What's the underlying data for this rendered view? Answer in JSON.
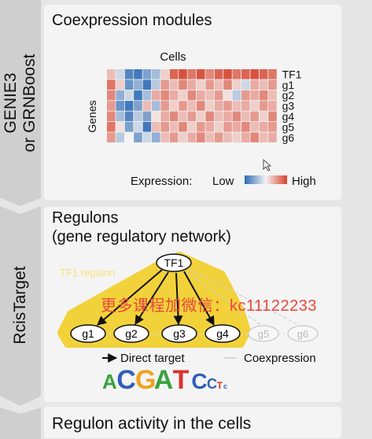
{
  "sections": [
    {
      "step_label": "GENIE3\nor GRNBoost",
      "title": "Coexpression modules"
    },
    {
      "step_label": "RcisTarget",
      "title_line1": "Regulons",
      "title_line2": "(gene regulatory network)"
    },
    {
      "step_label": "",
      "title": "Regulon activity in the cells"
    }
  ],
  "heatmap": {
    "x_label": "Cells",
    "y_label": "Genes",
    "rows": [
      "TF1",
      "g1",
      "g2",
      "g3",
      "g4",
      "g5",
      "g6"
    ],
    "legend_label": "Expression:",
    "legend_low": "Low",
    "legend_high": "High",
    "colors": {
      "low": "#2d6bb5",
      "mid": "#f5f3f2",
      "high": "#d6402c"
    },
    "values": [
      [
        0.3,
        -0.2,
        -0.8,
        -0.9,
        -0.6,
        -0.4,
        0.2,
        0.8,
        0.9,
        0.7,
        0.9,
        0.6,
        0.8,
        0.9,
        0.7,
        0.8,
        0.9,
        0.8,
        0.7
      ],
      [
        0.7,
        0.2,
        -0.7,
        -0.5,
        -0.9,
        -0.3,
        0.5,
        0.3,
        0.6,
        0.4,
        0.2,
        0.5,
        0.3,
        0.6,
        0.2,
        -0.2,
        0.4,
        0.3,
        0.5
      ],
      [
        0.6,
        -0.5,
        -0.2,
        -0.9,
        -0.4,
        0.4,
        0.6,
        0.4,
        0.2,
        0.6,
        0.4,
        0.3,
        0.5,
        0.1,
        -0.3,
        0.5,
        0.4,
        0.6,
        0.3
      ],
      [
        0.5,
        -0.7,
        -0.9,
        -0.6,
        0.3,
        -0.4,
        0.5,
        0.2,
        0.5,
        0.3,
        0.6,
        0.2,
        0.4,
        0.5,
        0.3,
        0.4,
        0.2,
        0.5,
        0.4
      ],
      [
        0.6,
        -0.4,
        -0.8,
        -0.3,
        -0.6,
        0.1,
        0.4,
        0.6,
        0.3,
        0.5,
        0.2,
        0.6,
        0.3,
        0.4,
        0.6,
        0.3,
        0.5,
        0.2,
        0.6
      ],
      [
        0.7,
        0.1,
        -0.6,
        -0.2,
        -0.9,
        0.3,
        0.5,
        0.3,
        0.6,
        0.2,
        0.5,
        0.4,
        0.2,
        0.5,
        0.4,
        0.6,
        0.3,
        0.4,
        0.5
      ],
      [
        0.5,
        -0.3,
        0.0,
        -0.6,
        -0.2,
        -0.5,
        0.3,
        0.5,
        0.2,
        0.4,
        0.6,
        0.3,
        0.5,
        0.3,
        0.2,
        0.4,
        0.6,
        0.3,
        0.4
      ]
    ]
  },
  "network": {
    "regulon_label": "TF1 regulon",
    "tf": "TF1",
    "direct_targets": [
      "g1",
      "g2",
      "g3",
      "g4"
    ],
    "coexpressed_only": [
      "g5",
      "g6"
    ],
    "legend_direct": "Direct target",
    "legend_coexpression": "Coexpression",
    "motif_letters": [
      {
        "letter": "A",
        "color": "#3aa33e",
        "size": 26
      },
      {
        "letter": "C",
        "color": "#2f5fb8",
        "size": 34
      },
      {
        "letter": "G",
        "color": "#f0a21f",
        "size": 34
      },
      {
        "letter": "A",
        "color": "#3aa33e",
        "size": 34
      },
      {
        "letter": "T",
        "color": "#d8342b",
        "size": 34
      },
      {
        "letter": "C",
        "color": "#2f5fb8",
        "size": 28
      },
      {
        "letter": "C",
        "color": "#2f5fb8",
        "size": 18
      },
      {
        "letter": "T",
        "color": "#d8342b",
        "size": 12
      },
      {
        "letter": "c",
        "color": "#2f5fb8",
        "size": 9
      }
    ]
  },
  "watermark": "更多课程加微信：kc11122233"
}
